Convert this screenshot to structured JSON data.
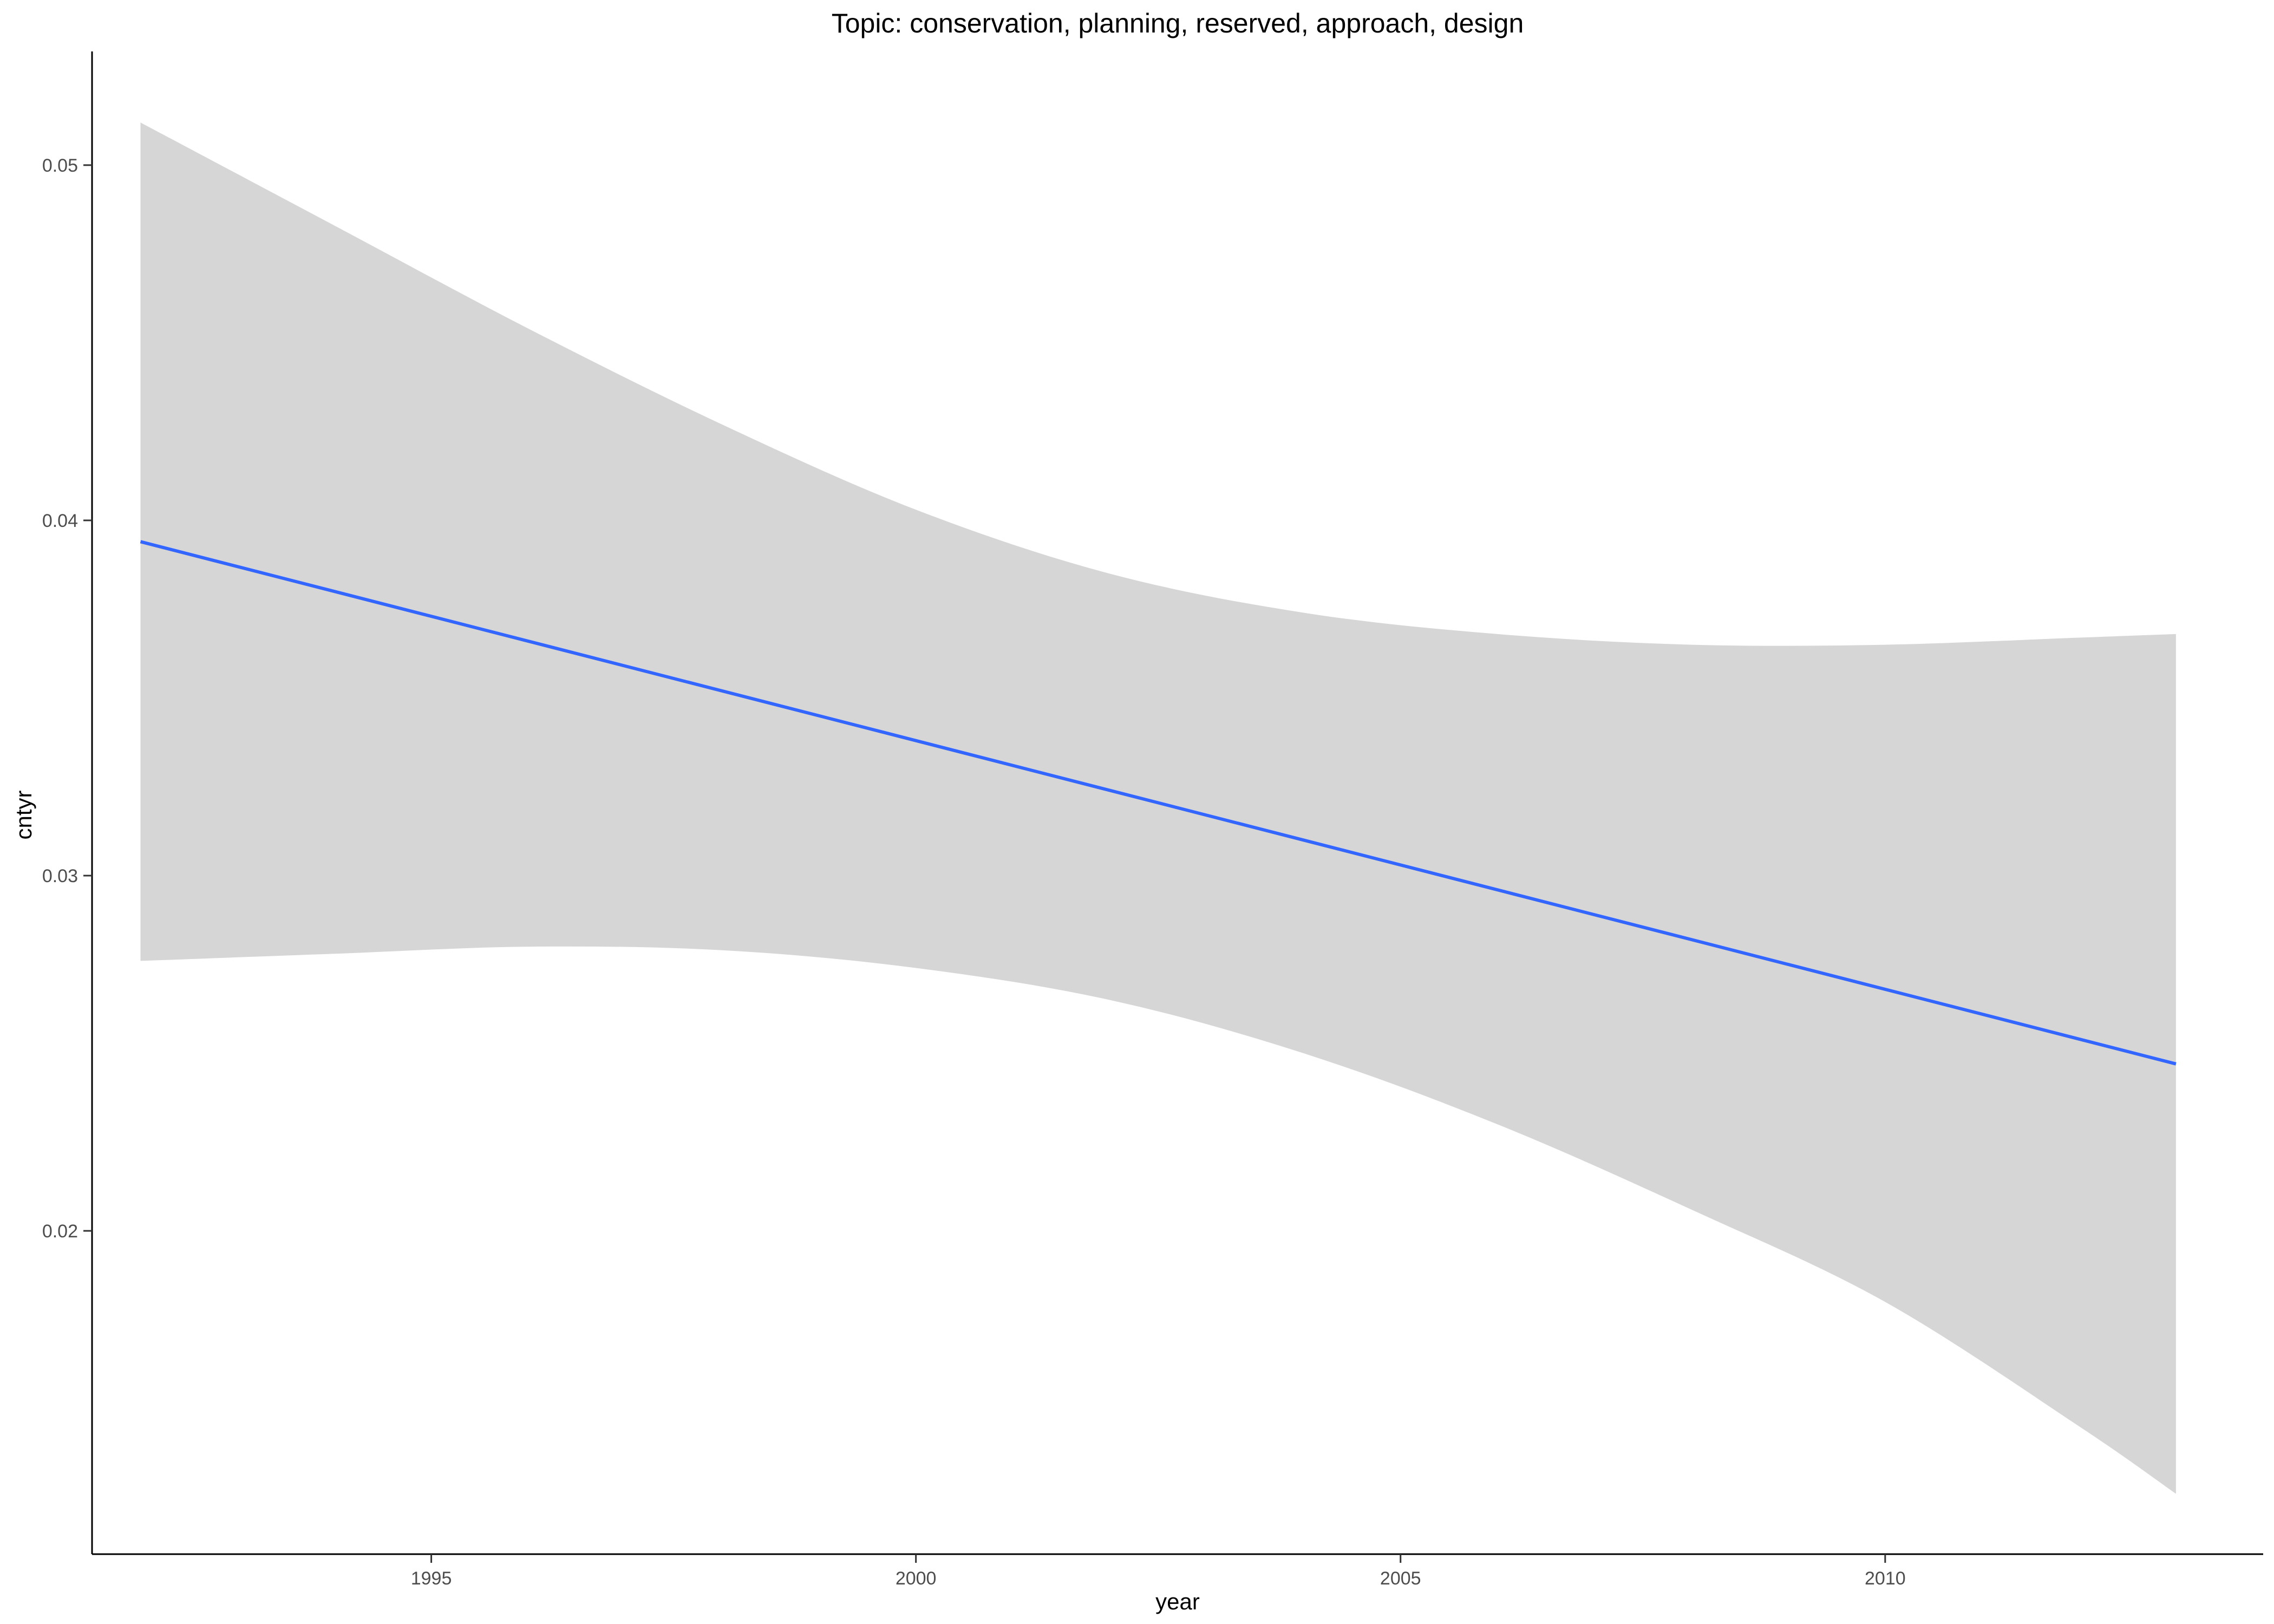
{
  "chart_data": {
    "type": "line",
    "title": "Topic: conservation, planning, reserved, approach, design",
    "xlabel": "year",
    "ylabel": "cntyr",
    "xlim": [
      1991.5,
      2013.9
    ],
    "ylim": [
      0.0109,
      0.0532
    ],
    "x_ticks": [
      1995,
      2000,
      2005,
      2010
    ],
    "x_tick_labels": [
      "1995",
      "2000",
      "2005",
      "2010"
    ],
    "y_ticks": [
      0.02,
      0.03,
      0.04,
      0.05
    ],
    "y_tick_labels": [
      "0.02",
      "0.03",
      "0.04",
      "0.05"
    ],
    "grid": false,
    "legend": "none",
    "series": [
      {
        "color": "#3366ff",
        "x": [
          1992,
          2013
        ],
        "y": [
          0.0394,
          0.0247
        ]
      }
    ],
    "confidence_band": {
      "color": "#d6d6d6",
      "x": [
        1992,
        1994,
        1996,
        1998,
        2000,
        2002,
        2004,
        2006,
        2008,
        2010,
        2012,
        2013
      ],
      "upper": [
        0.0512,
        0.0483,
        0.0454,
        0.0427,
        0.0403,
        0.0385,
        0.0374,
        0.0368,
        0.0365,
        0.0365,
        0.0367,
        0.0368
      ],
      "lower": [
        0.0276,
        0.0278,
        0.028,
        0.0279,
        0.0274,
        0.0265,
        0.025,
        0.023,
        0.0206,
        0.018,
        0.0145,
        0.0126
      ]
    }
  }
}
